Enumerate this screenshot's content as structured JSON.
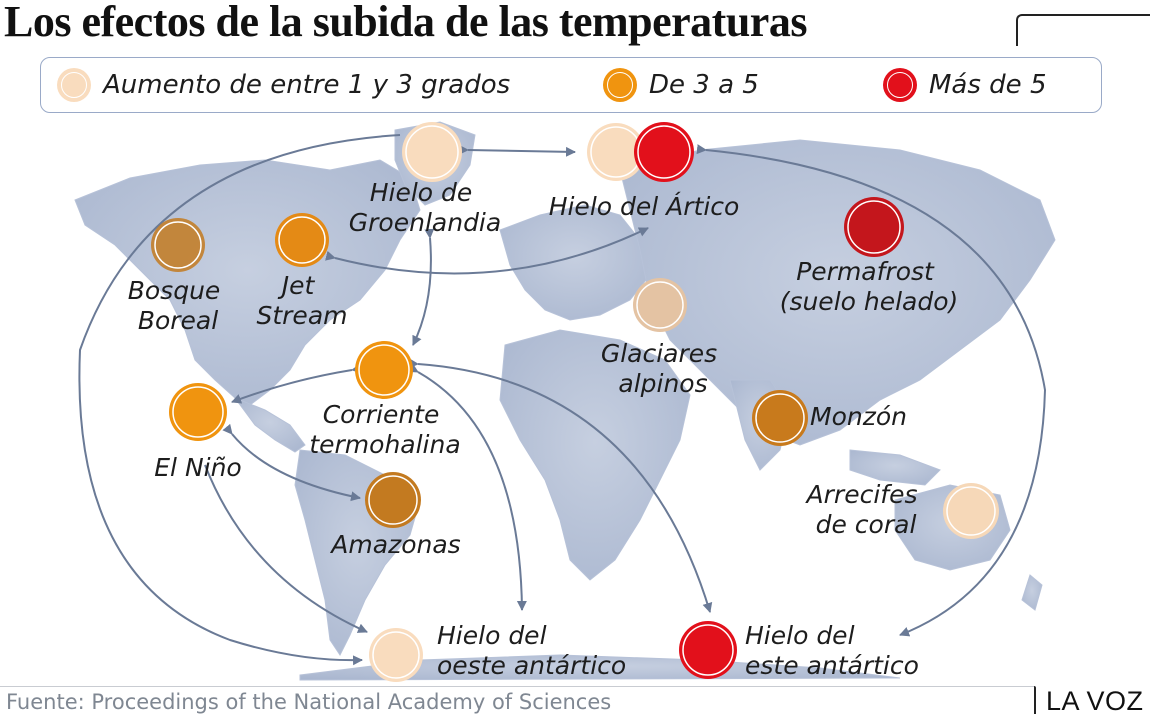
{
  "title": "Los efectos de la subida de las temperaturas",
  "legend": [
    {
      "label": "Aumento de entre 1 y 3 grados",
      "color": "#f9dcbe"
    },
    {
      "label": "De 3 a 5",
      "color": "#f0940f"
    },
    {
      "label": "Más de 5",
      "color": "#e2101b"
    }
  ],
  "elements": [
    {
      "id": "bosque-boreal",
      "lines": [
        "Bosque",
        "Boreal"
      ],
      "level": "medium"
    },
    {
      "id": "jet-stream",
      "lines": [
        "Jet",
        "Stream"
      ],
      "level": "medium"
    },
    {
      "id": "hielo-groenlandia",
      "lines": [
        "Hielo de",
        "Groenlandia"
      ],
      "level": "low"
    },
    {
      "id": "hielo-artico",
      "lines": [
        "Hielo del Ártico"
      ],
      "level": "high"
    },
    {
      "id": "permafrost",
      "lines": [
        "Permafrost",
        "(suelo helado)"
      ],
      "level": "high"
    },
    {
      "id": "glaciares-alpinos",
      "lines": [
        "Glaciares",
        "alpinos"
      ],
      "level": "low"
    },
    {
      "id": "corriente-termohalina",
      "lines": [
        "Corriente",
        "termohalina"
      ],
      "level": "medium"
    },
    {
      "id": "el-nino",
      "lines": [
        "El Niño"
      ],
      "level": "medium"
    },
    {
      "id": "monzon",
      "lines": [
        "Monzón"
      ],
      "level": "medium"
    },
    {
      "id": "amazonas",
      "lines": [
        "Amazonas"
      ],
      "level": "medium"
    },
    {
      "id": "arrecifes-coral",
      "lines": [
        "Arrecifes",
        "de coral"
      ],
      "level": "low"
    },
    {
      "id": "hielo-oeste-antartico",
      "lines": [
        "Hielo del",
        "oeste antártico"
      ],
      "level": "low"
    },
    {
      "id": "hielo-este-antartico",
      "lines": [
        "Hielo del",
        "este antártico"
      ],
      "level": "high"
    }
  ],
  "source": "Fuente: Proceedings of the National Academy of Sciences",
  "brand": "LA VOZ"
}
